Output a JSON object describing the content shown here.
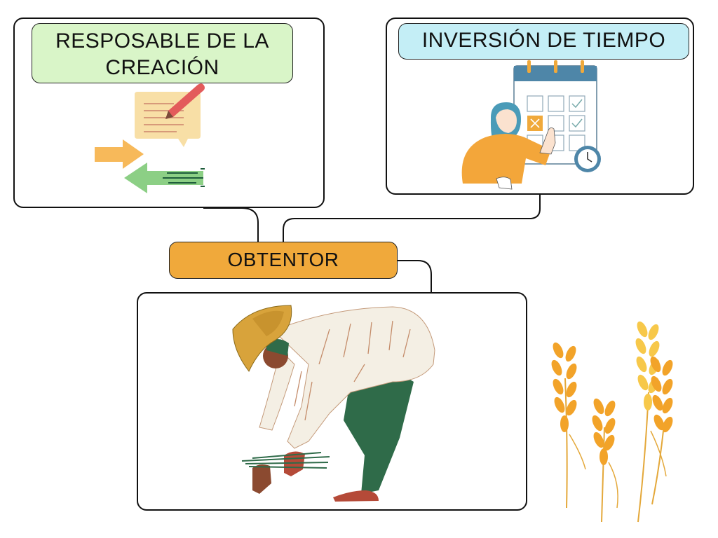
{
  "diagram": {
    "central_node": {
      "label": "OBTENTOR",
      "color": "#f0a93b"
    },
    "nodes": [
      {
        "id": "creation",
        "label": "RESPOSABLE DE LA CREACIÓN",
        "color": "#d9f5c8",
        "illustration": "document-pencil-arrows-icon"
      },
      {
        "id": "time",
        "label": "INVERSIÓN DE TIEMPO",
        "color": "#c4eef6",
        "illustration": "woman-calendar-clock-icon"
      },
      {
        "id": "farmer",
        "label": "",
        "illustration": "farmer-harvesting-wheat-illustration"
      }
    ],
    "decorations": [
      "wheat-stalks-illustration"
    ]
  }
}
